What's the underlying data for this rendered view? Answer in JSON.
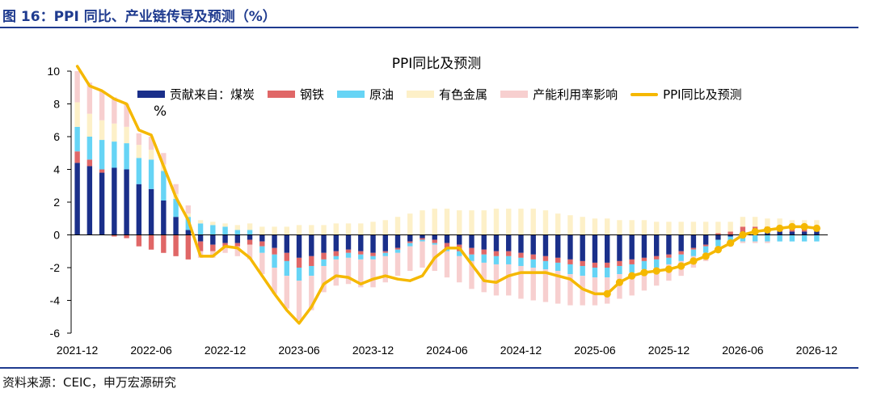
{
  "header": {
    "title": "图 16：PPI 同比、产业链传导及预测（%）"
  },
  "footer": {
    "source": "资料来源：CEIC，申万宏源研究"
  },
  "colors": {
    "coal": "#1a2f8a",
    "steel": "#e06767",
    "oil": "#66d4f5",
    "nonferrous": "#fdf0c8",
    "capacity": "#f7cfcf",
    "ppi": "#f5b800",
    "rule": "#1f3b8f"
  },
  "chart_data": {
    "type": "bar",
    "title": "PPI同比及预测",
    "unit_label": "%",
    "ylim": [
      -6,
      10
    ],
    "yticks": [
      "10",
      "8",
      "6",
      "4",
      "2",
      "0",
      "-2",
      "-4",
      "-6"
    ],
    "xticks": [
      "2021-12",
      "2022-06",
      "2022-12",
      "2023-06",
      "2023-12",
      "2024-06",
      "2024-12",
      "2025-06",
      "2025-12",
      "2026-06",
      "2026-12"
    ],
    "legend": [
      "贡献来自：煤炭",
      "钢铁",
      "原油",
      "有色金属",
      "产能利用率影响",
      "PPI同比及预测"
    ],
    "forecast_start_index": 43,
    "series": [
      {
        "name": "贡献来自：煤炭",
        "key": "coal",
        "values": [
          4.4,
          4.2,
          3.8,
          4.1,
          4.0,
          3.1,
          2.8,
          2.1,
          1.1,
          0.3,
          -0.4,
          -0.6,
          -0.5,
          -0.5,
          -0.3,
          -0.4,
          -0.8,
          -1.1,
          -1.4,
          -1.3,
          -1.1,
          -1.0,
          -0.9,
          -1.0,
          -1.1,
          -1.0,
          -0.8,
          -0.4,
          -0.2,
          -0.3,
          -0.5,
          -0.6,
          -0.8,
          -0.9,
          -1.0,
          -1.0,
          -1.1,
          -1.2,
          -1.3,
          -1.4,
          -1.5,
          -1.6,
          -1.7,
          -1.7,
          -1.6,
          -1.5,
          -1.4,
          -1.3,
          -1.2,
          -1.0,
          -0.8,
          -0.6,
          -0.3,
          -0.1,
          0.2,
          0.2,
          0.2,
          0.2,
          0.2,
          0.2,
          0.2
        ]
      },
      {
        "name": "钢铁",
        "key": "steel",
        "values": [
          0.7,
          0.4,
          0.2,
          -0.1,
          -0.2,
          -0.7,
          -0.9,
          -1.1,
          -1.3,
          -1.5,
          -0.6,
          -0.4,
          -0.2,
          -0.2,
          -0.3,
          -0.3,
          -0.4,
          -0.5,
          -0.6,
          -0.6,
          -0.4,
          -0.3,
          -0.2,
          -0.2,
          -0.2,
          -0.1,
          -0.1,
          -0.1,
          -0.1,
          -0.2,
          -0.3,
          -0.4,
          -0.4,
          -0.3,
          -0.3,
          -0.3,
          -0.3,
          -0.3,
          -0.3,
          -0.3,
          -0.3,
          -0.3,
          -0.3,
          -0.3,
          -0.3,
          -0.3,
          -0.2,
          -0.2,
          -0.2,
          -0.2,
          -0.1,
          -0.1,
          0.1,
          0.2,
          0.3,
          0.3,
          0.3,
          0.3,
          0.2,
          0.2,
          0.2
        ]
      },
      {
        "name": "原油",
        "key": "oil",
        "values": [
          1.5,
          1.4,
          1.8,
          1.6,
          1.6,
          1.6,
          1.8,
          1.8,
          1.1,
          0.8,
          0.7,
          0.6,
          0.5,
          0.3,
          0.3,
          -0.4,
          -0.8,
          -0.9,
          -0.8,
          -0.6,
          -0.4,
          -0.2,
          -0.3,
          -0.3,
          -0.2,
          -0.2,
          -0.2,
          -0.2,
          -0.1,
          -0.1,
          -0.2,
          -0.3,
          -0.4,
          -0.5,
          -0.5,
          -0.5,
          -0.5,
          -0.5,
          -0.5,
          -0.5,
          -0.6,
          -0.6,
          -0.6,
          -0.6,
          -0.5,
          -0.5,
          -0.5,
          -0.5,
          -0.4,
          -0.4,
          -0.4,
          -0.4,
          -0.4,
          -0.4,
          -0.4,
          -0.4,
          -0.4,
          -0.4,
          -0.4,
          -0.4,
          -0.4
        ]
      },
      {
        "name": "有色金属",
        "key": "nonferrous",
        "values": [
          1.5,
          1.4,
          1.2,
          1.1,
          1.0,
          0.8,
          0.6,
          0.4,
          0.3,
          0.2,
          0.2,
          0.2,
          0.2,
          0.3,
          0.4,
          0.5,
          0.5,
          0.5,
          0.6,
          0.6,
          0.6,
          0.7,
          0.7,
          0.7,
          0.8,
          0.9,
          1.1,
          1.3,
          1.5,
          1.6,
          1.6,
          1.5,
          1.5,
          1.5,
          1.6,
          1.6,
          1.6,
          1.6,
          1.5,
          1.3,
          1.2,
          1.1,
          1.0,
          1.0,
          0.9,
          0.9,
          0.9,
          0.8,
          0.8,
          0.8,
          0.8,
          0.8,
          0.7,
          0.6,
          0.6,
          0.6,
          0.5,
          0.5,
          0.5,
          0.5,
          0.5
        ]
      },
      {
        "name": "产能利用率影响",
        "key": "capacity",
        "values": [
          1.9,
          1.9,
          1.8,
          1.6,
          1.4,
          0.7,
          0.8,
          0.7,
          0.6,
          0.5,
          -0.4,
          -0.4,
          -0.4,
          -0.6,
          -0.9,
          -1.3,
          -1.6,
          -2.0,
          -2.4,
          -2.1,
          -1.6,
          -1.6,
          -1.6,
          -1.7,
          -1.7,
          -1.6,
          -1.4,
          -1.5,
          -1.6,
          -1.6,
          -1.6,
          -1.6,
          -1.7,
          -1.8,
          -1.9,
          -1.9,
          -2.0,
          -2.0,
          -2.0,
          -2.0,
          -1.9,
          -1.8,
          -1.7,
          -1.6,
          -1.5,
          -1.4,
          -1.3,
          -1.1,
          -1.0,
          -0.9,
          -0.7,
          -0.5,
          -0.3,
          -0.2,
          -0.1,
          -0.1,
          -0.1,
          0.0,
          0.0,
          0.0,
          0.0
        ]
      },
      {
        "name": "PPI同比及预测",
        "key": "ppi",
        "type": "line",
        "values": [
          10.3,
          9.1,
          8.8,
          8.3,
          8.0,
          6.4,
          6.1,
          4.2,
          2.3,
          0.9,
          -1.3,
          -1.3,
          -0.7,
          -0.8,
          -1.4,
          -2.5,
          -3.6,
          -4.6,
          -5.4,
          -4.4,
          -3.0,
          -2.5,
          -2.6,
          -3.0,
          -2.7,
          -2.5,
          -2.7,
          -2.8,
          -2.5,
          -1.4,
          -0.8,
          -0.8,
          -1.8,
          -2.8,
          -2.9,
          -2.5,
          -2.3,
          -2.3,
          -2.3,
          -2.5,
          -2.7,
          -3.3,
          -3.6,
          -3.6,
          -2.9,
          -2.5,
          -2.3,
          -2.2,
          -2.1,
          -1.9,
          -1.6,
          -1.3,
          -0.9,
          -0.5,
          0.0,
          0.2,
          0.3,
          0.4,
          0.5,
          0.5,
          0.4
        ]
      }
    ]
  }
}
